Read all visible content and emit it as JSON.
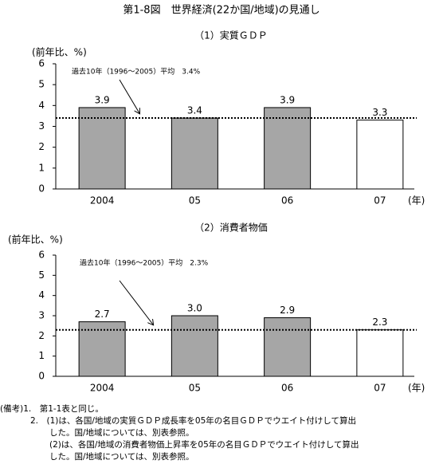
{
  "title": "第1-8図　世界経済(22か国/地域)の見通し",
  "chart_data": [
    {
      "type": "bar",
      "title": "（1）実質ＧＤＰ",
      "y_label": "(前年比、%)",
      "x_unit": "(年)",
      "categories": [
        "2004",
        "05",
        "06",
        "07"
      ],
      "values": [
        3.9,
        3.4,
        3.9,
        3.3
      ],
      "value_labels": [
        "3.9",
        "3.4",
        "3.9",
        "3.3"
      ],
      "colors": [
        "#a6a6a6",
        "#a6a6a6",
        "#a6a6a6",
        "#ffffff"
      ],
      "ylim": [
        0,
        6
      ],
      "yticks": [
        0,
        1,
        2,
        3,
        4,
        5,
        6
      ],
      "average": 3.4,
      "average_label": "過去10年（1996～2005）平均　3.4%"
    },
    {
      "type": "bar",
      "title": "（2）消費者物価",
      "y_label": "(前年比、%)",
      "x_unit": "(年)",
      "categories": [
        "2004",
        "05",
        "06",
        "07"
      ],
      "values": [
        2.7,
        3.0,
        2.9,
        2.3
      ],
      "value_labels": [
        "2.7",
        "3.0",
        "2.9",
        "2.3"
      ],
      "colors": [
        "#a6a6a6",
        "#a6a6a6",
        "#a6a6a6",
        "#ffffff"
      ],
      "ylim": [
        0,
        6
      ],
      "yticks": [
        0,
        1,
        2,
        3,
        4,
        5,
        6
      ],
      "average": 2.3,
      "average_label": "過去10年（1996～2005）平均　2.3%"
    }
  ],
  "notes": [
    "(備考)1.　第1-1表と同じ。",
    "2.　(1)は、各国/地域の実質ＧＤＰ成長率を05年の名目ＧＤＰでウエイト付けして算出",
    "した。国/地域については、別表参照。",
    "(2)は、各国/地域の消費者物価上昇率を05年の名目ＧＤＰでウエイト付けして算出",
    "した。国/地域については、別表参照。"
  ]
}
